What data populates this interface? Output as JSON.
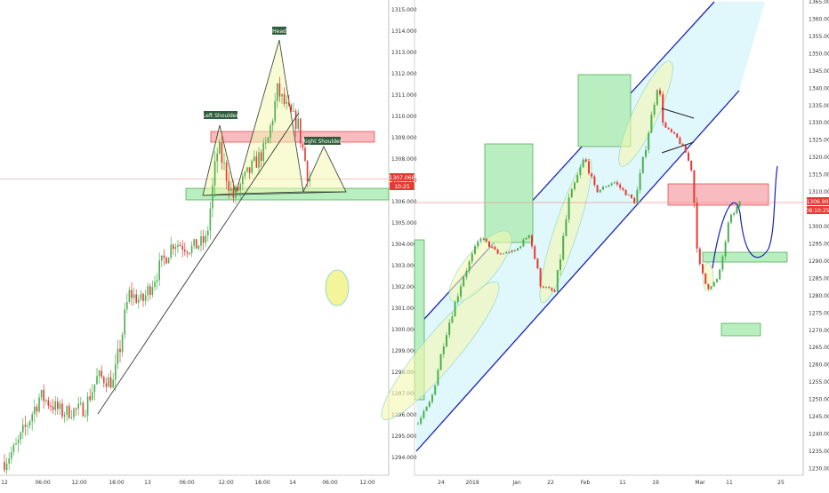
{
  "colors": {
    "up": "#4caf50",
    "down": "#e53935",
    "pink_fill": "#f8bbc0",
    "pink_stroke": "#e53935",
    "green_fill": "#b9efc0",
    "green_stroke": "#43a047",
    "channel": "#1a22b5",
    "channel_fill": "#e0f7fc",
    "price_line": "#ef9a9a",
    "label_dark": "#2e5d3a",
    "yellow_fill": "#f3f7b0"
  },
  "chart_data": [
    {
      "type": "candlestick",
      "title": "",
      "y_axis_ticks": [
        "1315.000",
        "1314.000",
        "1313.000",
        "1312.000",
        "1311.000",
        "1310.000",
        "1309.000",
        "1308.000",
        "1307.000",
        "1306.000",
        "1305.000",
        "1304.000",
        "1303.000",
        "1302.000",
        "1301.000",
        "1300.000",
        "1299.000",
        "1298.000",
        "1297.000",
        "1296.000",
        "1295.000",
        "1294.000"
      ],
      "x_axis_ticks": [
        "12",
        "06:00",
        "12:00",
        "18:00",
        "13",
        "06:00",
        "12:00",
        "18:00",
        "14",
        "06:00",
        "12:00"
      ],
      "ylim": [
        1293.5,
        1315.5
      ],
      "last_price": "1307.066",
      "countdown": "10:25",
      "annotations": [
        "Head",
        "Left Shoulder",
        "Right Shoulder"
      ]
    },
    {
      "type": "candlestick",
      "title": "",
      "y_axis_ticks": [
        "1365.00",
        "1360.00",
        "1355.00",
        "1350.00",
        "1345.00",
        "1340.00",
        "1335.00",
        "1330.00",
        "1325.00",
        "1320.00",
        "1315.00",
        "1310.00",
        "1305.00",
        "1300.00",
        "1295.00",
        "1290.00",
        "1285.00",
        "1280.00",
        "1275.00",
        "1270.00",
        "1265.00",
        "1260.00",
        "1255.00",
        "1250.00",
        "1245.00",
        "1240.00",
        "1235.00",
        "1230.00"
      ],
      "x_axis_ticks": [
        "24",
        "2019",
        "Jan",
        "22",
        "Feb",
        "11",
        "19",
        "Mar",
        "11",
        "25"
      ],
      "ylim": [
        1227,
        1365
      ],
      "last_price": "1306.90",
      "countdown": "08:10:25"
    }
  ]
}
